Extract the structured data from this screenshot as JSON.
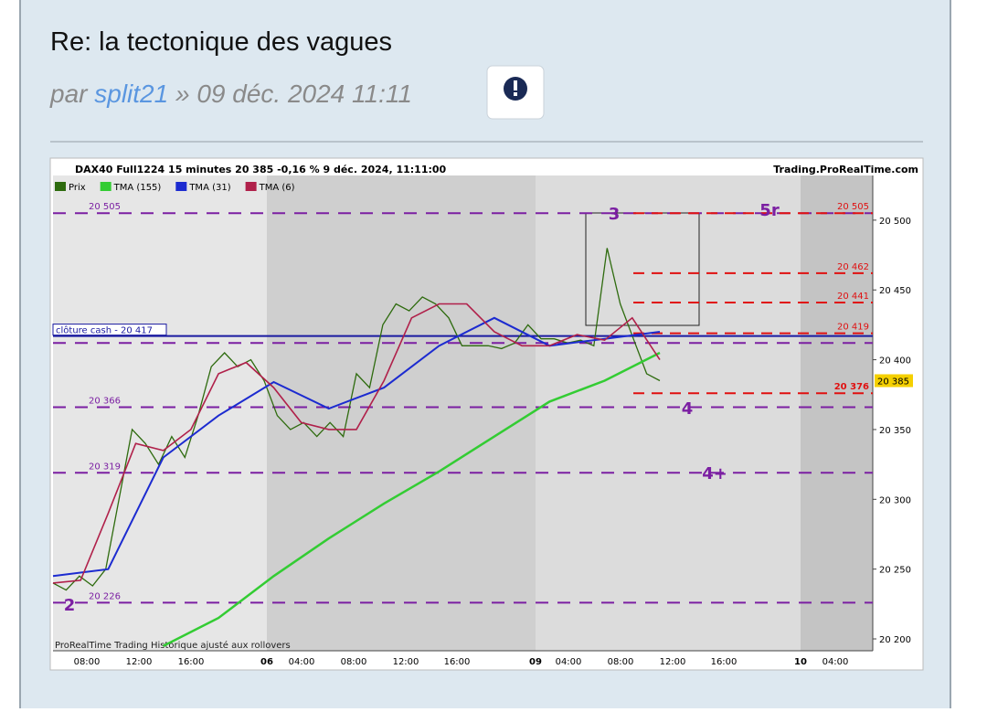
{
  "post": {
    "title": "Re: la tectonique des vagues",
    "by": "par",
    "author": "split21",
    "date": "» 09 déc. 2024 11:11"
  },
  "chart_data": {
    "type": "line",
    "header": "DAX40 Full1224 15 minutes 20 385 -0,16 % 9 déc. 2024, 11:11:00",
    "source": "Trading.ProRealTime.com",
    "footer": "ProRealTime Trading  Historique ajusté aux rollovers",
    "ylim": [
      20191.5,
      20532
    ],
    "yticks": [
      {
        "value": 20200,
        "label": "20 200"
      },
      {
        "value": 20250,
        "label": "20 250"
      },
      {
        "value": 20300,
        "label": "20 300"
      },
      {
        "value": 20350,
        "label": "20 350"
      },
      {
        "value": 20400,
        "label": "20 400"
      },
      {
        "value": 20450,
        "label": "20 450"
      },
      {
        "value": 20500,
        "label": "20 500"
      }
    ],
    "x_labels": [
      "08:00",
      "12:00",
      "16:00",
      "06",
      "04:00",
      "08:00",
      "12:00",
      "16:00",
      "09",
      "04:00",
      "08:00",
      "12:00",
      "16:00",
      "10",
      "04:00"
    ],
    "series": [
      {
        "name": "Prix",
        "color": "#2e6b0e",
        "values": [
          20240,
          20235,
          20245,
          20238,
          20250,
          20300,
          20350,
          20340,
          20325,
          20345,
          20330,
          20360,
          20395,
          20405,
          20395,
          20400,
          20385,
          20360,
          20350,
          20355,
          20345,
          20355,
          20345,
          20390,
          20380,
          20425,
          20440,
          20435,
          20445,
          20440,
          20430,
          20410,
          20410,
          20410,
          20408,
          20412,
          20425,
          20415,
          20415,
          20412,
          20414,
          20410,
          20480,
          20440,
          20415,
          20390,
          20385
        ]
      },
      {
        "name": "TMA (155)",
        "color": "#33cc33",
        "values": [
          null,
          null,
          20195,
          20215,
          20245,
          20272,
          20297,
          20320,
          20345,
          20370,
          20385,
          20405
        ]
      },
      {
        "name": "TMA (31)",
        "color": "#1c2bd0",
        "values": [
          20245,
          20250,
          20330,
          20360,
          20384,
          20365,
          20380,
          20410,
          20430,
          20410,
          20415,
          20420
        ]
      },
      {
        "name": "TMA (6)",
        "color": "#b0204a",
        "values": [
          20240,
          20242,
          20290,
          20340,
          20335,
          20350,
          20390,
          20398,
          20380,
          20355,
          20350,
          20350,
          20385,
          20430,
          20440,
          20440,
          20420,
          20410,
          20410,
          20418,
          20414,
          20430,
          20400
        ]
      }
    ],
    "levels": [
      {
        "value": 20505,
        "label": "20 505"
      },
      {
        "value": 20412
      },
      {
        "value": 20366,
        "label": "20 366"
      },
      {
        "value": 20319,
        "label": "20 319"
      },
      {
        "value": 20226,
        "label": "20 226"
      }
    ],
    "red_levels": [
      {
        "value": 20505,
        "label": "20 505"
      },
      {
        "value": 20462,
        "label": "20 462"
      },
      {
        "value": 20441,
        "label": "20 441"
      },
      {
        "value": 20419,
        "label": "20 419"
      },
      {
        "value": 20376,
        "label": "20 376"
      }
    ],
    "cash_close": {
      "value": 20417,
      "label": "clôture cash -  20 417"
    },
    "last_price": {
      "value": 20385,
      "label": "20 385"
    },
    "waves": [
      "2",
      "3",
      "4",
      "4+",
      "5r"
    ]
  }
}
